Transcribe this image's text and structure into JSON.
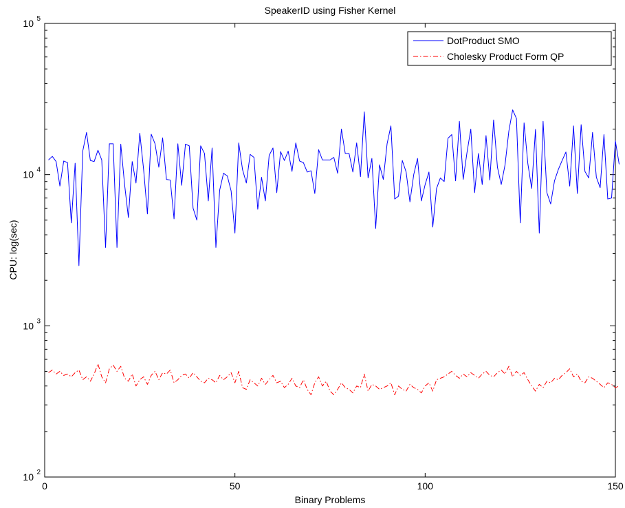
{
  "chart_data": {
    "type": "line",
    "title": "SpeakerID using Fisher Kernel",
    "xlabel": "Binary Problems",
    "ylabel": "CPU: log(sec)",
    "xlim": [
      0,
      150
    ],
    "ylim": [
      100,
      100000
    ],
    "yscale": "log",
    "grid": false,
    "legend_position": "top-right",
    "x_ticks": [
      {
        "value": 0,
        "label": "0"
      },
      {
        "value": 50,
        "label": "50"
      },
      {
        "value": 100,
        "label": "100"
      },
      {
        "value": 150,
        "label": "150"
      }
    ],
    "y_ticks": [
      {
        "value": 100,
        "base": "10",
        "exp": "2"
      },
      {
        "value": 1000,
        "base": "10",
        "exp": "3"
      },
      {
        "value": 10000,
        "base": "10",
        "exp": "4"
      },
      {
        "value": 100000,
        "base": "10",
        "exp": "5"
      }
    ],
    "series": [
      {
        "name": "DotProduct SMO",
        "color": "#0000ff",
        "dash": "solid",
        "x_start": 1,
        "values": [
          12500,
          13200,
          12200,
          8400,
          12300,
          12000,
          4800,
          11900,
          2500,
          14300,
          19000,
          12400,
          12200,
          14500,
          12500,
          3300,
          16000,
          16000,
          3300,
          15900,
          8600,
          5200,
          12200,
          8800,
          18800,
          10800,
          5500,
          18500,
          16000,
          11200,
          17500,
          9300,
          9200,
          5100,
          16000,
          8500,
          15900,
          15500,
          6000,
          5000,
          15500,
          13800,
          6700,
          15000,
          3300,
          7900,
          10200,
          9800,
          7800,
          4100,
          16200,
          10800,
          8800,
          13600,
          13000,
          5900,
          9600,
          6700,
          13400,
          15000,
          7600,
          14200,
          12400,
          14300,
          10500,
          16200,
          12300,
          12000,
          10400,
          10600,
          7500,
          14600,
          12500,
          12500,
          12500,
          13000,
          10200,
          20000,
          13800,
          13800,
          10400,
          16200,
          9700,
          26000,
          9500,
          12800,
          4400,
          11600,
          9300,
          16000,
          21000,
          6900,
          7200,
          12400,
          10400,
          6600,
          10000,
          12800,
          6700,
          8600,
          10400,
          4500,
          8100,
          9500,
          9000,
          17400,
          18400,
          9100,
          22500,
          9300,
          14000,
          20000,
          7600,
          13800,
          8600,
          18100,
          9200,
          23000,
          11200,
          8600,
          11600,
          19400,
          26800,
          23500,
          4800,
          22000,
          11800,
          8100,
          19900,
          4100,
          22500,
          7600,
          6400,
          9100,
          10800,
          12400,
          14100,
          8400,
          21000,
          7500,
          21400,
          10500,
          9500,
          19000,
          9600,
          8200,
          18400,
          6900,
          7000,
          16700,
          11700
        ]
      },
      {
        "name": "Cholesky Product Form QP",
        "color": "#ff0000",
        "dash": "dashdot",
        "x_start": 1,
        "values": [
          490,
          510,
          480,
          500,
          470,
          480,
          460,
          490,
          510,
          440,
          460,
          430,
          480,
          560,
          460,
          420,
          520,
          550,
          500,
          540,
          450,
          430,
          480,
          400,
          440,
          460,
          410,
          470,
          500,
          440,
          490,
          480,
          510,
          420,
          440,
          470,
          480,
          450,
          490,
          460,
          430,
          420,
          450,
          440,
          420,
          470,
          440,
          460,
          490,
          420,
          500,
          390,
          380,
          440,
          420,
          400,
          450,
          410,
          440,
          470,
          420,
          430,
          390,
          410,
          450,
          400,
          390,
          440,
          380,
          350,
          420,
          460,
          400,
          430,
          370,
          350,
          380,
          420,
          390,
          380,
          360,
          400,
          390,
          480,
          370,
          410,
          400,
          380,
          390,
          400,
          420,
          350,
          400,
          380,
          370,
          410,
          390,
          380,
          360,
          400,
          420,
          370,
          440,
          450,
          460,
          480,
          500,
          470,
          450,
          480,
          460,
          490,
          470,
          450,
          480,
          500,
          470,
          460,
          490,
          510,
          480,
          540,
          460,
          500,
          470,
          490,
          440,
          400,
          370,
          410,
          390,
          430,
          420,
          450,
          440,
          470,
          490,
          520,
          460,
          480,
          430,
          420,
          460,
          450,
          430,
          410,
          390,
          420,
          410,
          390,
          400
        ]
      }
    ]
  }
}
